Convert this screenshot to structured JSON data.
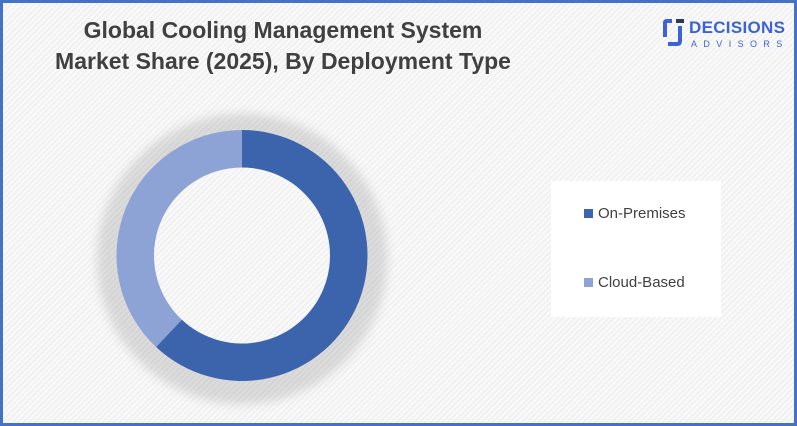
{
  "title_line1": "Global Cooling Management System",
  "title_line2": "Market Share (2025), By Deployment Type",
  "logo": {
    "name": "DECISIONS",
    "sub": "ADVISORS",
    "color": "#3b63d6"
  },
  "chart_data": {
    "type": "pie",
    "variant": "donut",
    "title": "Global Cooling Management System Market Share (2025), By Deployment Type",
    "categories": [
      "On-Premises",
      "Cloud-Based"
    ],
    "values": [
      62,
      38
    ],
    "unit": "%",
    "colors": [
      "#3c64ad",
      "#8da2d5"
    ],
    "legend": "right"
  }
}
